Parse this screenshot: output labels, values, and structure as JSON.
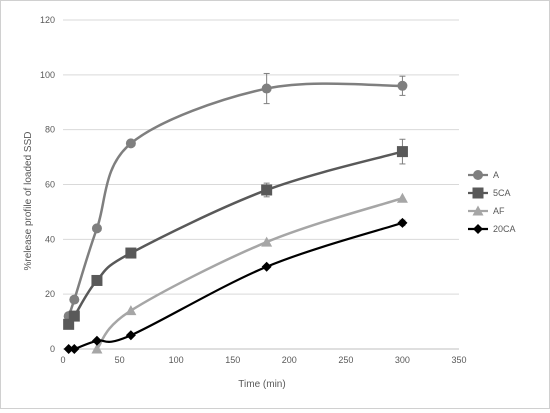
{
  "chart_data": {
    "type": "line",
    "title": "",
    "xlabel": "Time (min)",
    "ylabel": "%release profile of loaded SSD",
    "xlim": [
      0,
      350
    ],
    "ylim": [
      0,
      120
    ],
    "xticks": [
      0,
      50,
      100,
      150,
      200,
      250,
      300,
      350
    ],
    "yticks": [
      0,
      20,
      40,
      60,
      80,
      100,
      120
    ],
    "grid": "horizontal",
    "legend_position": "right",
    "smooth": true,
    "series": [
      {
        "name": "A",
        "color": "#7f7f7f",
        "marker": "circle",
        "x": [
          5,
          10,
          30,
          60,
          180,
          300
        ],
        "y": [
          12,
          18,
          44,
          75,
          95,
          96
        ],
        "error": [
          0,
          0,
          0,
          0,
          5.5,
          3.5
        ]
      },
      {
        "name": "5CA",
        "color": "#595959",
        "marker": "square",
        "x": [
          5,
          10,
          30,
          60,
          180,
          300
        ],
        "y": [
          9,
          12,
          25,
          35,
          58,
          72
        ],
        "error": [
          0,
          0,
          0,
          0,
          2.5,
          4.5
        ]
      },
      {
        "name": "AF",
        "color": "#a6a6a6",
        "marker": "triangle",
        "x": [
          30,
          60,
          180,
          300
        ],
        "y": [
          0,
          14,
          39,
          55
        ],
        "error": [
          0,
          0,
          0,
          0
        ]
      },
      {
        "name": "20CA",
        "color": "#000000",
        "marker": "diamond",
        "x": [
          5,
          10,
          30,
          60,
          180,
          300
        ],
        "y": [
          0,
          0,
          3,
          5,
          30,
          46
        ],
        "error": [
          0,
          0,
          0,
          0,
          0,
          1
        ]
      }
    ]
  }
}
